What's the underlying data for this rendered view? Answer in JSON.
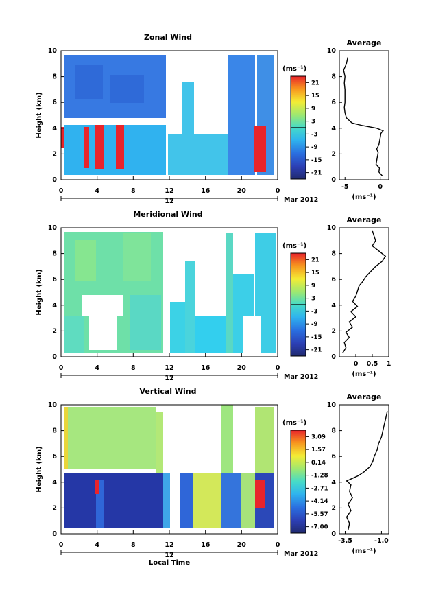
{
  "chart_data": [
    {
      "type": "heatmap",
      "title": "Zonal Wind",
      "ylabel": "Height (km)",
      "ylim": [
        0,
        10
      ],
      "yticks": [
        "0",
        "2",
        "4",
        "6",
        "8",
        "10"
      ],
      "xticks": [
        "0",
        "4",
        "8",
        "12",
        "16",
        "20",
        "0"
      ],
      "date_label": "12",
      "month_label": "Mar 2012",
      "colorbar": {
        "unit": "(ms⁻¹)",
        "labels": [
          "21",
          "15",
          "9",
          "3",
          "-3",
          "-9",
          "-15",
          "-21"
        ],
        "range": [
          -24,
          24
        ]
      },
      "profile": {
        "title": "Average",
        "xlabel": "(ms⁻¹)",
        "xticks": [
          "-5",
          "0"
        ],
        "xlim": [
          -5.8,
          1.2
        ],
        "height": [
          0.3,
          0.6,
          0.9,
          1.2,
          1.5,
          1.8,
          2.1,
          2.4,
          2.7,
          3.0,
          3.3,
          3.6,
          3.8,
          4.0,
          4.2,
          4.4,
          4.8,
          5.2,
          5.6,
          6.0,
          6.5,
          7.0,
          7.5,
          8.0,
          8.5,
          9.0,
          9.5
        ],
        "value": [
          0.3,
          -0.2,
          -0.1,
          -0.6,
          -0.5,
          -0.4,
          -0.3,
          -0.5,
          -0.2,
          -0.1,
          0.0,
          0.1,
          0.4,
          -0.5,
          -2.5,
          -4.0,
          -4.8,
          -5.0,
          -5.1,
          -5.0,
          -5.0,
          -5.0,
          -5.1,
          -5.0,
          -5.2,
          -4.8,
          -4.6
        ]
      }
    },
    {
      "type": "heatmap",
      "title": "Meridional Wind",
      "ylabel": "Height (km)",
      "ylim": [
        0,
        10
      ],
      "yticks": [
        "0",
        "2",
        "4",
        "6",
        "8",
        "10"
      ],
      "xticks": [
        "0",
        "4",
        "8",
        "12",
        "16",
        "20",
        "0"
      ],
      "date_label": "12",
      "month_label": "Mar 2012",
      "colorbar": {
        "unit": "(ms⁻¹)",
        "labels": [
          "21",
          "15",
          "9",
          "3",
          "-3",
          "-9",
          "-15",
          "-21"
        ],
        "range": [
          -24,
          24
        ]
      },
      "profile": {
        "title": "Average",
        "xlabel": "(ms⁻¹)",
        "xticks": [
          "0",
          "0.5",
          "1"
        ],
        "xlim": [
          -0.5,
          1.0
        ],
        "height": [
          0.3,
          0.7,
          1.1,
          1.5,
          1.9,
          2.3,
          2.7,
          3.1,
          3.5,
          3.9,
          4.3,
          4.7,
          5.1,
          5.5,
          5.8,
          6.2,
          6.6,
          7.0,
          7.4,
          7.8,
          8.2,
          8.6,
          9.0,
          9.4,
          9.8
        ],
        "value": [
          -0.4,
          -0.3,
          -0.35,
          -0.2,
          -0.3,
          -0.1,
          -0.2,
          0.0,
          -0.15,
          0.05,
          -0.1,
          0.0,
          0.05,
          0.1,
          0.2,
          0.3,
          0.45,
          0.6,
          0.8,
          0.9,
          0.7,
          0.5,
          0.6,
          0.55,
          0.5
        ]
      }
    },
    {
      "type": "heatmap",
      "title": "Vertical Wind",
      "ylabel": "Height (km)",
      "xlabel": "Local Time",
      "ylim": [
        0,
        10
      ],
      "yticks": [
        "0",
        "2",
        "4",
        "6",
        "8",
        "10"
      ],
      "xticks": [
        "0",
        "4",
        "8",
        "12",
        "16",
        "20",
        "0"
      ],
      "date_label": "12",
      "month_label": "Mar 2012",
      "colorbar": {
        "unit": "(ms⁻¹)",
        "labels": [
          "3.09",
          "1.57",
          "0.14",
          "-1.28",
          "-2.71",
          "-4.14",
          "-5.57",
          "-7.00"
        ],
        "range": [
          -7.6,
          3.6
        ]
      },
      "profile": {
        "title": "Average",
        "xlabel": "(ms⁻¹)",
        "xticks": [
          "-3.5",
          "-1.0"
        ],
        "xlim": [
          -3.9,
          -0.5
        ],
        "height": [
          0.3,
          0.8,
          1.3,
          1.8,
          2.3,
          2.8,
          3.3,
          3.8,
          4.1,
          4.3,
          4.5,
          4.8,
          5.2,
          5.6,
          6.0,
          6.5,
          7.0,
          7.5,
          8.0,
          8.5,
          9.0,
          9.5
        ],
        "value": [
          -3.3,
          -3.2,
          -3.4,
          -3.1,
          -3.3,
          -3.0,
          -3.2,
          -3.1,
          -3.4,
          -3.0,
          -2.6,
          -2.2,
          -1.8,
          -1.6,
          -1.5,
          -1.3,
          -1.2,
          -1.0,
          -0.9,
          -0.8,
          -0.7,
          -0.6
        ]
      }
    }
  ]
}
